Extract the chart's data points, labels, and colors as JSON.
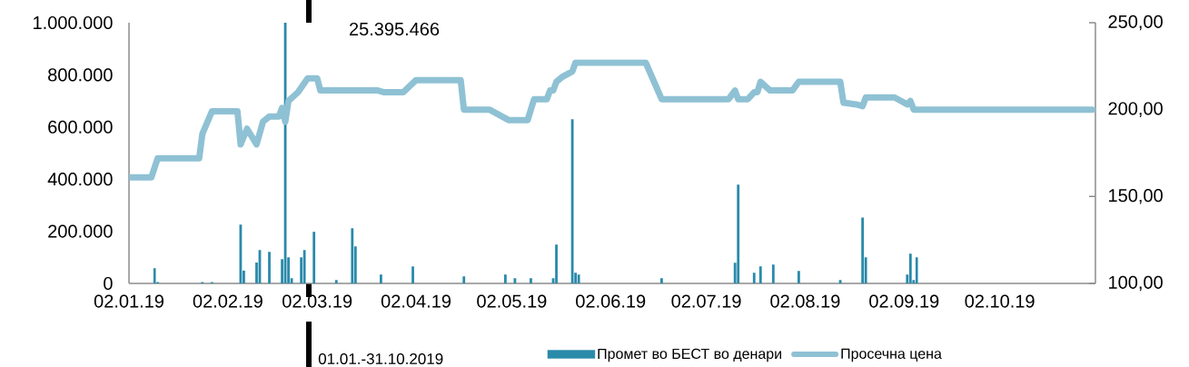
{
  "chart_data": {
    "type": "bar",
    "x": [
      "2019-01-10",
      "2019-01-11",
      "2019-01-25",
      "2019-01-28",
      "2019-02-06",
      "2019-02-07",
      "2019-02-11",
      "2019-02-12",
      "2019-02-15",
      "2019-02-19",
      "2019-02-20",
      "2019-02-21",
      "2019-02-22",
      "2019-02-25",
      "2019-02-26",
      "2019-03-01",
      "2019-03-08",
      "2019-03-13",
      "2019-03-14",
      "2019-03-22",
      "2019-04-01",
      "2019-04-17",
      "2019-04-30",
      "2019-05-03",
      "2019-05-08",
      "2019-05-15",
      "2019-05-16",
      "2019-05-21",
      "2019-05-22",
      "2019-05-23",
      "2019-06-18",
      "2019-07-11",
      "2019-07-12",
      "2019-07-17",
      "2019-07-19",
      "2019-07-23",
      "2019-07-31",
      "2019-08-13",
      "2019-08-20",
      "2019-08-21",
      "2019-09-03",
      "2019-09-04",
      "2019-09-05",
      "2019-09-06"
    ],
    "series": [
      {
        "name": "Промет во БЕСТ во денари",
        "color": "#2a8aaa",
        "values": [
          58000,
          5000,
          5000,
          5000,
          226000,
          49000,
          80000,
          128000,
          121000,
          93000,
          1000000,
          100000,
          20000,
          100000,
          128000,
          198000,
          13000,
          212000,
          142000,
          34000,
          65000,
          27000,
          34000,
          20000,
          20000,
          20000,
          149000,
          630000,
          41000,
          34000,
          20000,
          79000,
          379000,
          41000,
          65000,
          72000,
          48000,
          13000,
          253000,
          100000,
          34000,
          114000,
          13000,
          100000
        ]
      },
      {
        "name": "Просечна цена",
        "type": "line",
        "axis": "y2",
        "color": "#8fc1d4",
        "x": [
          "2019-01-02",
          "2019-01-09",
          "2019-01-11",
          "2019-01-24",
          "2019-01-25",
          "2019-01-28",
          "2019-02-05",
          "2019-02-06",
          "2019-02-08",
          "2019-02-11",
          "2019-02-13",
          "2019-02-15",
          "2019-02-18",
          "2019-02-19",
          "2019-02-20",
          "2019-02-21",
          "2019-02-24",
          "2019-02-27",
          "2019-03-02",
          "2019-03-03",
          "2019-03-21",
          "2019-03-23",
          "2019-03-29",
          "2019-04-02",
          "2019-04-16",
          "2019-04-17",
          "2019-04-25",
          "2019-05-01",
          "2019-05-07",
          "2019-05-09",
          "2019-05-13",
          "2019-05-14",
          "2019-05-15",
          "2019-05-16",
          "2019-05-18",
          "2019-05-21",
          "2019-05-22",
          "2019-06-13",
          "2019-06-18",
          "2019-07-09",
          "2019-07-11",
          "2019-07-12",
          "2019-07-15",
          "2019-07-17",
          "2019-07-18",
          "2019-07-19",
          "2019-07-22",
          "2019-07-29",
          "2019-07-31",
          "2019-08-13",
          "2019-08-14",
          "2019-08-18",
          "2019-08-20",
          "2019-08-21",
          "2019-08-30",
          "2019-09-03",
          "2019-09-04",
          "2019-09-05",
          "2019-10-31"
        ],
        "values": [
          161,
          161,
          172,
          172,
          186,
          199,
          199,
          180,
          189,
          180,
          193,
          196,
          196,
          201,
          193,
          205,
          210,
          218,
          218,
          211,
          211,
          210,
          210,
          217,
          217,
          200,
          200,
          194,
          194,
          206,
          206,
          211,
          211,
          216,
          219,
          222,
          227,
          227,
          206,
          206,
          211,
          206,
          206,
          210,
          210,
          216,
          211,
          211,
          216,
          216,
          204,
          203,
          202,
          207,
          207,
          203,
          205,
          200,
          200
        ]
      }
    ],
    "xlim": [
      "2019-01-02",
      "2019-11-01"
    ],
    "xticks": [
      {
        "value": "2019-01-02",
        "label": "02.01.19"
      },
      {
        "value": "2019-02-02",
        "label": "02.02.19"
      },
      {
        "value": "2019-03-02",
        "label": "02.03.19"
      },
      {
        "value": "2019-04-02",
        "label": "02.04.19"
      },
      {
        "value": "2019-05-02",
        "label": "02.05.19"
      },
      {
        "value": "2019-06-02",
        "label": "02.06.19"
      },
      {
        "value": "2019-07-02",
        "label": "02.07.19"
      },
      {
        "value": "2019-08-02",
        "label": "02.08.19"
      },
      {
        "value": "2019-09-02",
        "label": "02.09.19"
      },
      {
        "value": "2019-10-02",
        "label": "02.10.19"
      }
    ],
    "ylim": [
      0,
      1000000
    ],
    "yticks": [
      0,
      {
        "value": 200000,
        "label": "200.000"
      },
      {
        "value": 400000,
        "label": "400.000"
      },
      {
        "value": 600000,
        "label": "600.000"
      },
      {
        "value": 800000,
        "label": "800.000"
      },
      {
        "value": 1000000,
        "label": "1.000.000"
      }
    ],
    "y2lim": [
      100,
      250
    ],
    "y2ticks": [
      {
        "value": 100,
        "label": "100,00"
      },
      {
        "value": 150,
        "label": "150,00"
      },
      {
        "value": 200,
        "label": "200,00"
      },
      {
        "value": 250,
        "label": "250,00"
      }
    ],
    "legend": "bottom",
    "annotations": [
      "25.395.466",
      "01.01.-31.10.2019"
    ]
  }
}
